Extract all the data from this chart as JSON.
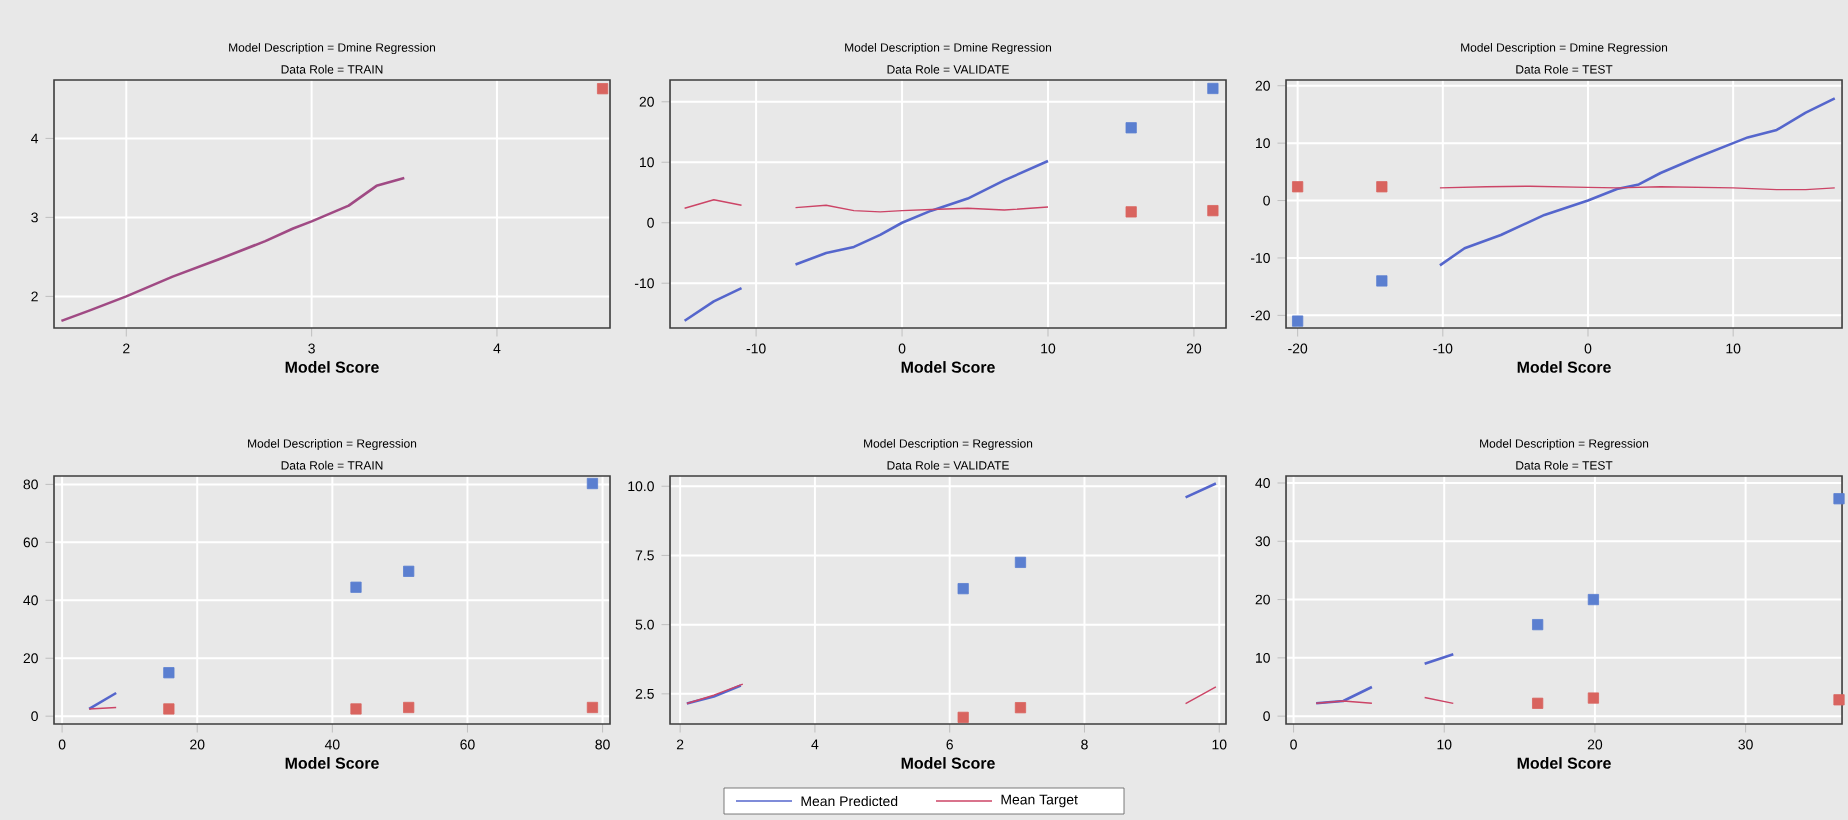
{
  "chart_data": [
    {
      "type": "line",
      "title": "Model Description = Dmine Regression",
      "subtitle": "Data Role = TRAIN",
      "xlabel": "Model Score",
      "xlim": [
        1.61,
        4.61
      ],
      "ylim": [
        1.6,
        4.74
      ],
      "xticks": [
        2,
        3,
        4
      ],
      "yticks": [
        2,
        3,
        4
      ],
      "grid": true,
      "series": [
        {
          "color": "#a04a84",
          "x": [
            1.65,
            1.8,
            2,
            2.25,
            2.5,
            2.75,
            2.9,
            3.0,
            3.2,
            3.35,
            3.5
          ],
          "values": [
            1.69,
            1.82,
            2.0,
            2.25,
            2.47,
            2.7,
            2.86,
            2.95,
            3.15,
            3.4,
            3.5
          ]
        },
        {
          "type": "scatter",
          "marker": "square",
          "color": "#d9645f",
          "x": [
            4.57
          ],
          "values": [
            4.63
          ]
        }
      ]
    },
    {
      "type": "line",
      "title": "Model Description = Dmine Regression",
      "subtitle": "Data Role = VALIDATE",
      "xlabel": "Model Score",
      "xlim": [
        -15.9,
        22.2
      ],
      "ylim": [
        -17.4,
        23.6
      ],
      "xticks": [
        -10,
        0,
        10,
        20
      ],
      "yticks": [
        -10,
        0,
        10,
        20
      ],
      "grid": true,
      "legend": "bottom",
      "series": [
        {
          "name": "Mean Predicted",
          "type": "line",
          "color": "#5566cc",
          "x": [
            -14.9,
            -12.9,
            -11,
            -9,
            -7.3,
            -5.2,
            -3.3,
            -1.5,
            0,
            2,
            4.5,
            7,
            10
          ],
          "values": [
            -16.2,
            -13,
            -10.8,
            null,
            -6.9,
            -5,
            -4,
            -2,
            0,
            2,
            4,
            7,
            10.2
          ]
        },
        {
          "name": "Mean Target",
          "type": "line",
          "color": "#cc4466",
          "x": [
            -14.9,
            -12.9,
            -11,
            -9,
            -7.3,
            -5.2,
            -3.3,
            -1.5,
            0,
            2,
            4.5,
            7,
            10
          ],
          "values": [
            2.4,
            3.8,
            2.9,
            null,
            2.5,
            2.9,
            2,
            1.8,
            2,
            2.2,
            2.4,
            2.1,
            2.6
          ]
        },
        {
          "type": "scatter",
          "marker": "square",
          "color": "#5b7fd0",
          "x": [
            15.7,
            21.3
          ],
          "values": [
            15.7,
            22.2
          ]
        },
        {
          "type": "scatter",
          "marker": "square",
          "color": "#d9645f",
          "x": [
            15.7,
            21.3
          ],
          "values": [
            1.8,
            2.0
          ]
        }
      ]
    },
    {
      "type": "line",
      "title": "Model Description = Dmine Regression",
      "subtitle": "Data Role = TEST",
      "xlabel": "Model Score",
      "xlim": [
        -20.8,
        17.5
      ],
      "ylim": [
        -22.2,
        21
      ],
      "xticks": [
        -20,
        -10,
        0,
        10
      ],
      "yticks": [
        -20,
        -10,
        0,
        10,
        20
      ],
      "grid": true,
      "series": [
        {
          "color": "#5566cc",
          "x": [
            -10.2,
            -8.5,
            -6,
            -3,
            0,
            2,
            3.5,
            5,
            7.5,
            10,
            11,
            13,
            15,
            17
          ],
          "values": [
            -11.3,
            -8.3,
            -6,
            -2.5,
            0,
            2,
            2.8,
            4.8,
            7.5,
            10,
            11,
            12.3,
            15.3,
            17.8
          ]
        },
        {
          "color": "#cc4466",
          "x": [
            -10.2,
            -7,
            -4,
            0,
            2,
            5,
            10,
            13,
            15,
            17
          ],
          "values": [
            2.2,
            2.4,
            2.5,
            2.3,
            2.2,
            2.4,
            2.2,
            1.9,
            1.9,
            2.2
          ]
        },
        {
          "type": "scatter",
          "marker": "square",
          "color": "#5b7fd0",
          "x": [
            -20,
            -14.2
          ],
          "values": [
            -21,
            -14
          ]
        },
        {
          "type": "scatter",
          "marker": "square",
          "color": "#d9645f",
          "x": [
            -20,
            -14.2
          ],
          "values": [
            2.4,
            2.4
          ]
        }
      ]
    },
    {
      "type": "line",
      "title": "Model Description = Regression",
      "subtitle": "Data Role = TRAIN",
      "xlabel": "Model Score",
      "xlim": [
        -1.2,
        81.1
      ],
      "ylim": [
        -2.7,
        82.9
      ],
      "xticks": [
        0,
        20,
        40,
        60,
        80
      ],
      "yticks": [
        0,
        20,
        40,
        60,
        80
      ],
      "grid": true,
      "series": [
        {
          "color": "#5566cc",
          "x": [
            4,
            8
          ],
          "values": [
            2.5,
            8
          ]
        },
        {
          "color": "#cc4466",
          "x": [
            4,
            8
          ],
          "values": [
            2.5,
            3
          ]
        },
        {
          "type": "scatter",
          "marker": "square",
          "color": "#5b7fd0",
          "x": [
            15.8,
            43.5,
            51.3,
            78.5
          ],
          "values": [
            15,
            44.5,
            50,
            80.3
          ]
        },
        {
          "type": "scatter",
          "marker": "square",
          "color": "#d9645f",
          "x": [
            15.8,
            43.5,
            51.3,
            78.5
          ],
          "values": [
            2.5,
            2.5,
            3,
            3
          ]
        }
      ]
    },
    {
      "type": "line",
      "title": "Model Description = Regression",
      "subtitle": "Data Role = VALIDATE",
      "xlabel": "Model Score",
      "xlim": [
        1.85,
        10.1
      ],
      "ylim": [
        1.41,
        10.37
      ],
      "xticks": [
        2,
        4,
        6,
        8,
        10
      ],
      "yticks": [
        {
          "value": 2.5,
          "label": "2.5"
        },
        {
          "value": 5,
          "label": "5.0"
        },
        {
          "value": 7.5,
          "label": "7.5"
        },
        {
          "value": 10,
          "label": "10.0"
        }
      ],
      "grid": true,
      "series": [
        {
          "color": "#5566cc",
          "x": [
            2.1,
            2.5,
            2.9,
            6,
            9.5,
            9.95
          ],
          "values": [
            2.15,
            2.4,
            2.8,
            null,
            9.6,
            10.1
          ]
        },
        {
          "color": "#cc4466",
          "x": [
            2.1,
            2.5,
            2.93,
            6,
            9.5,
            9.95
          ],
          "values": [
            2.15,
            2.45,
            2.85,
            null,
            2.15,
            2.75
          ]
        },
        {
          "type": "scatter",
          "marker": "square",
          "color": "#5b7fd0",
          "x": [
            6.2,
            7.05
          ],
          "values": [
            6.3,
            7.25
          ]
        },
        {
          "type": "scatter",
          "marker": "square",
          "color": "#d9645f",
          "x": [
            6.2,
            7.05
          ],
          "values": [
            1.65,
            2.0
          ]
        }
      ]
    },
    {
      "type": "line",
      "title": "Model Description = Regression",
      "subtitle": "Data Role = TEST",
      "xlabel": "Model Score",
      "xlim": [
        -0.5,
        36.4
      ],
      "ylim": [
        -1.35,
        41.2
      ],
      "xticks": [
        0,
        10,
        20,
        30
      ],
      "yticks": [
        0,
        10,
        20,
        30,
        40
      ],
      "grid": true,
      "series": [
        {
          "color": "#5566cc",
          "x": [
            1.5,
            3.3,
            5.2,
            7,
            8.7,
            10.6
          ],
          "values": [
            2.2,
            2.6,
            5,
            null,
            9,
            10.6
          ]
        },
        {
          "color": "#cc4466",
          "x": [
            1.5,
            3.3,
            5.2,
            7,
            8.7,
            10.6
          ],
          "values": [
            2.2,
            2.6,
            2.2,
            null,
            3.2,
            2.2
          ]
        },
        {
          "type": "scatter",
          "marker": "square",
          "color": "#5b7fd0",
          "x": [
            16.2,
            19.9,
            36.2
          ],
          "values": [
            15.7,
            20,
            37.3
          ]
        },
        {
          "type": "scatter",
          "marker": "square",
          "color": "#d9645f",
          "x": [
            16.2,
            19.9,
            36.2
          ],
          "values": [
            2.2,
            3.1,
            2.8
          ]
        }
      ]
    }
  ]
}
